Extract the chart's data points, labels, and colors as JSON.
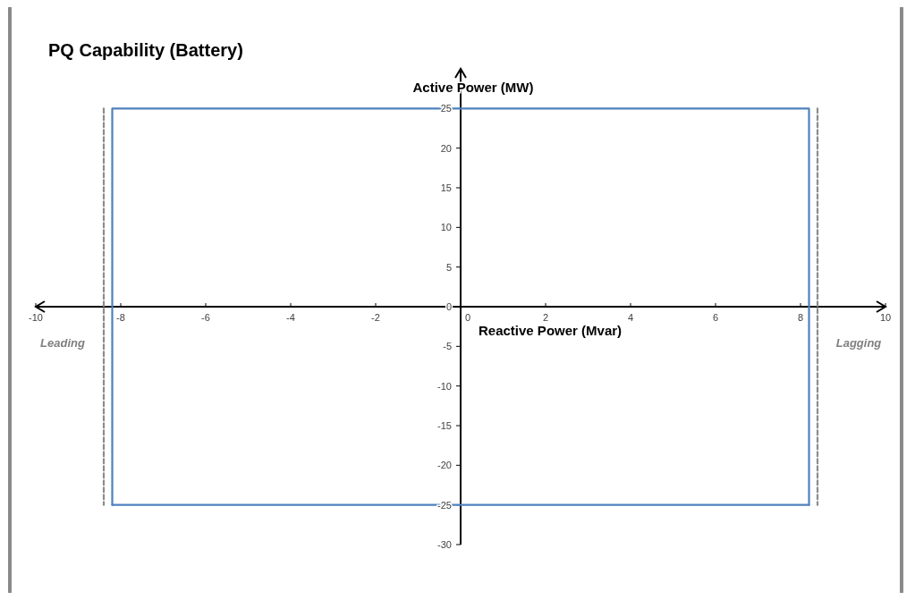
{
  "chart_data": {
    "type": "line",
    "title": "PQ Capability (Battery)",
    "xlabel": "Reactive Power (Mvar)",
    "ylabel": "Active Power (MW)",
    "annotations": [
      "Leading",
      "Lagging"
    ],
    "series": [
      {
        "color": "#8c8c8c",
        "x": [
          -8.4,
          -8.4
        ],
        "values": [
          25,
          -25
        ],
        "line_style": "dashed"
      },
      {
        "color": "#8c8c8c",
        "x": [
          8.4,
          8.4
        ],
        "values": [
          25,
          -25
        ],
        "line_style": "dashed"
      },
      {
        "color": "#4f81bd",
        "x": [
          -8.2,
          -8.2,
          8.2,
          8.2
        ],
        "values": [
          -25,
          25,
          25,
          -25
        ],
        "line_style": "solid"
      },
      {
        "color": "#4f81bd",
        "x": [
          -8.2,
          8.2
        ],
        "values": [
          -25,
          -25
        ],
        "line_style": "solid"
      }
    ],
    "xlim": [
      -10,
      10
    ],
    "xticks": [
      -10,
      -8,
      -6,
      -4,
      -2,
      0,
      2,
      4,
      6,
      8,
      10
    ],
    "ylim": [
      -30,
      30
    ],
    "yticks": [
      -30,
      -25,
      -20,
      -15,
      -10,
      -5,
      0,
      5,
      10,
      15,
      20,
      25
    ],
    "grid": false,
    "marker": "none"
  }
}
